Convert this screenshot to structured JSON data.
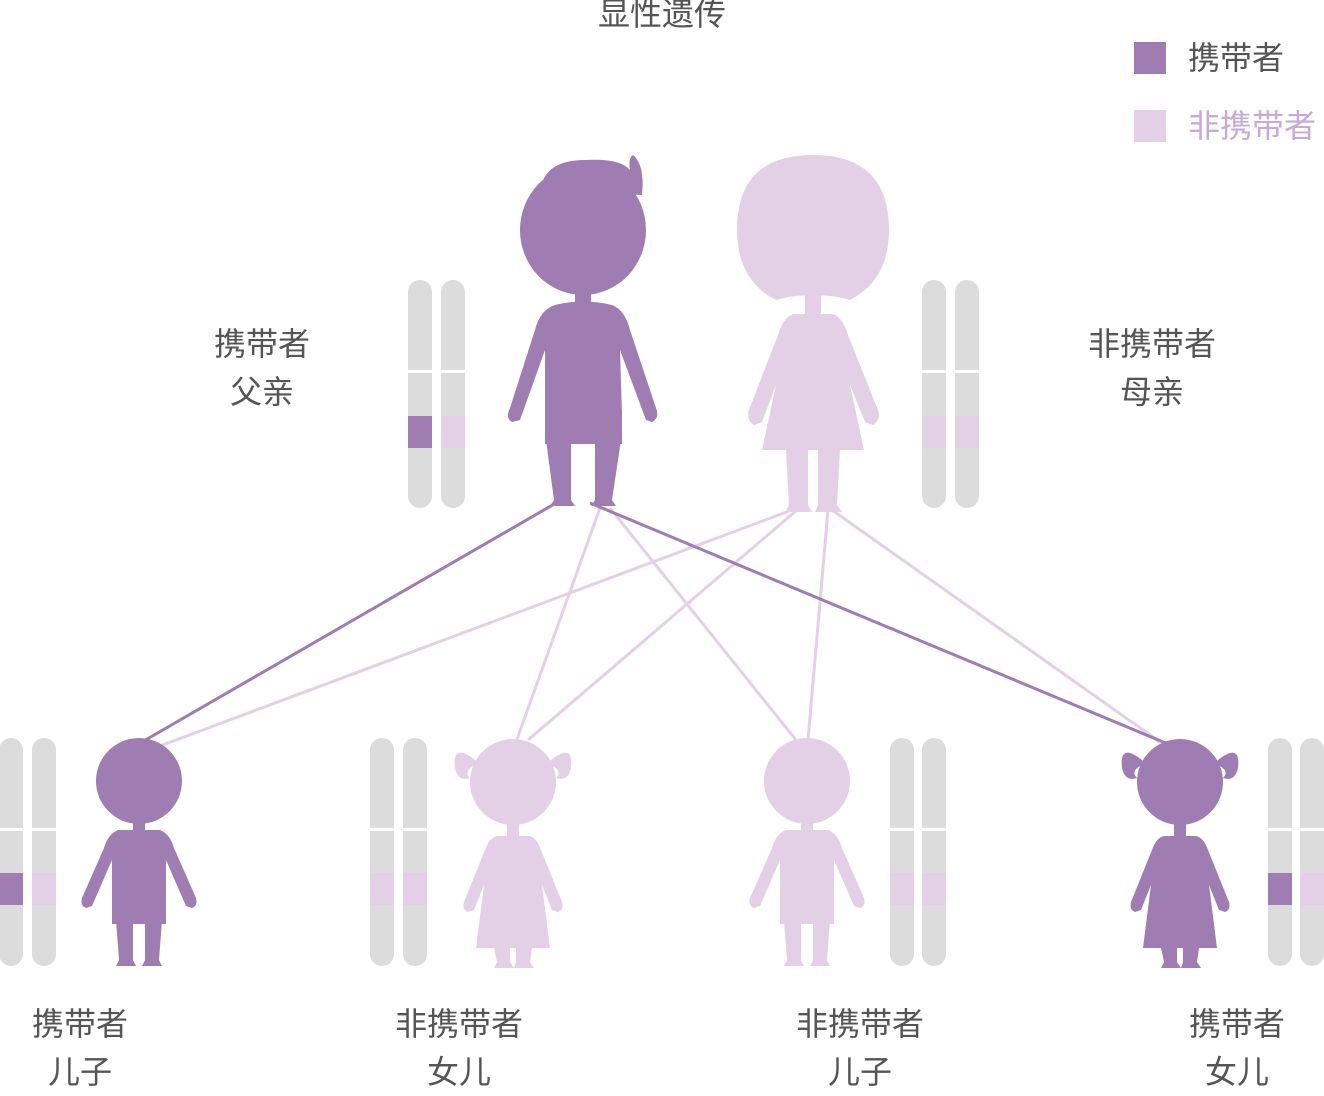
{
  "title": "显性遗传",
  "colors": {
    "carrier": "#9f7cb1",
    "non_carrier": "#e4d0e6",
    "chromosome": "#dcdcdc",
    "text": "#555555",
    "legend_non_carrier_text": "#c9a9d6"
  },
  "legend": {
    "carrier_label": "携带者",
    "non_carrier_label": "非携带者"
  },
  "parents": {
    "father": {
      "status": "携带者",
      "role": "父亲"
    },
    "mother": {
      "status": "非携带者",
      "role": "母亲"
    }
  },
  "children": [
    {
      "status": "携带者",
      "role": "儿子"
    },
    {
      "status": "非携带者",
      "role": "女儿"
    },
    {
      "status": "非携带者",
      "role": "儿子"
    },
    {
      "status": "携带者",
      "role": "女儿"
    }
  ]
}
